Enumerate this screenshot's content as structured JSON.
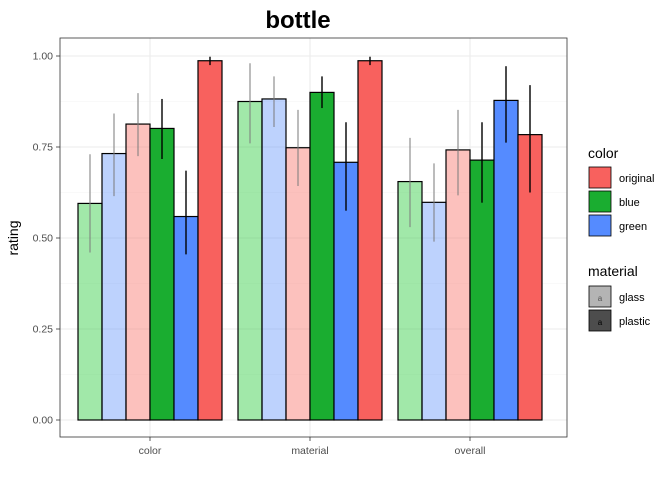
{
  "chart_data": {
    "type": "bar",
    "title": "bottle",
    "xlabel": "",
    "ylabel": "rating",
    "categories": [
      "color",
      "material",
      "overall"
    ],
    "ylim": [
      0,
      1.04
    ],
    "yticks": [
      "0.00",
      "0.25",
      "0.50",
      "0.75",
      "1.00"
    ],
    "ytick_values": [
      0,
      0.25,
      0.5,
      0.75,
      1.0
    ],
    "grid": true,
    "legend_position": "right",
    "legend": {
      "color": {
        "title": "color",
        "items": [
          "original",
          "blue",
          "green"
        ]
      },
      "material": {
        "title": "material",
        "items": [
          "glass",
          "plastic"
        ],
        "key_glyph": "a"
      }
    },
    "series": [
      {
        "color": "green",
        "material": "glass",
        "fill": "#2ecc40",
        "alpha": 0.45,
        "values": [
          0.595,
          0.875,
          0.655
        ],
        "lower": [
          0.46,
          0.76,
          0.53
        ],
        "upper": [
          0.73,
          0.98,
          0.775
        ]
      },
      {
        "color": "blue",
        "material": "glass",
        "fill": "#5b8ff9",
        "alpha": 0.4,
        "values": [
          0.732,
          0.882,
          0.598
        ],
        "lower": [
          0.615,
          0.805,
          0.49
        ],
        "upper": [
          0.842,
          0.944,
          0.705
        ]
      },
      {
        "color": "original",
        "material": "glass",
        "fill": "#f8766d",
        "alpha": 0.45,
        "values": [
          0.813,
          0.748,
          0.742
        ],
        "lower": [
          0.725,
          0.643,
          0.617
        ],
        "upper": [
          0.898,
          0.852,
          0.852
        ]
      },
      {
        "color": "green",
        "material": "plastic",
        "fill": "#1aad30",
        "alpha": 1,
        "values": [
          0.801,
          0.9,
          0.714
        ],
        "lower": [
          0.717,
          0.857,
          0.597
        ],
        "upper": [
          0.882,
          0.944,
          0.818
        ]
      },
      {
        "color": "blue",
        "material": "plastic",
        "fill": "#558bff",
        "alpha": 1,
        "values": [
          0.559,
          0.708,
          0.878
        ],
        "lower": [
          0.455,
          0.575,
          0.762
        ],
        "upper": [
          0.685,
          0.818,
          0.972
        ]
      },
      {
        "color": "original",
        "material": "plastic",
        "fill": "#f8615e",
        "alpha": 1,
        "values": [
          0.987,
          0.987,
          0.784
        ],
        "lower": [
          0.975,
          0.975,
          0.625
        ],
        "upper": [
          0.998,
          0.998,
          0.92
        ]
      }
    ]
  }
}
